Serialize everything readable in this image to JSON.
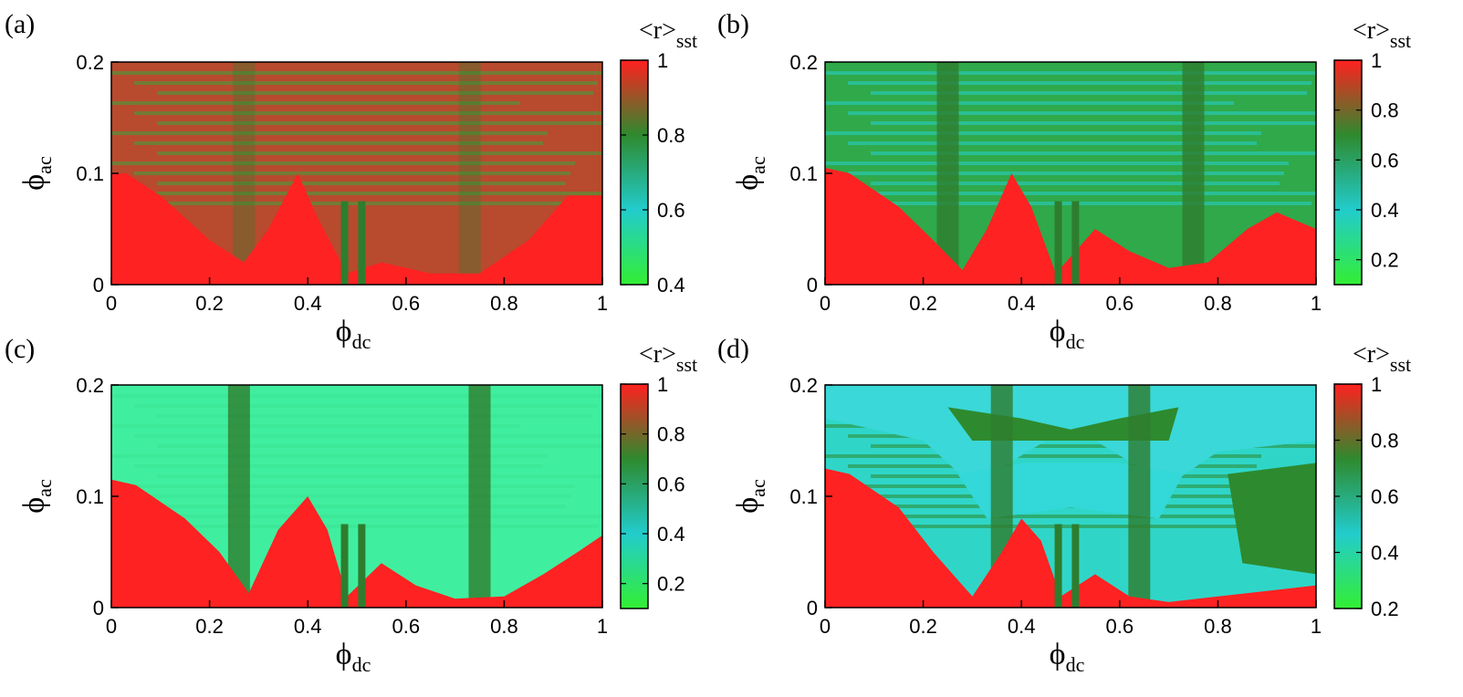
{
  "chart_data": [
    {
      "type": "heatmap",
      "panel_label": "(a)",
      "xlabel": "ϕ",
      "xlabel_sub": "dc",
      "ylabel": "ϕ",
      "ylabel_sub": "ac",
      "xlim": [
        0,
        1
      ],
      "ylim": [
        0,
        0.2
      ],
      "x_ticks": [
        "0",
        "0.2",
        "0.4",
        "0.6",
        "0.8",
        "1"
      ],
      "y_ticks": [
        "0",
        "0.1",
        "0.2"
      ],
      "colorbar": {
        "title": "<r>",
        "title_sub": "sst",
        "range": [
          0.4,
          1
        ],
        "ticks": [
          "0.4",
          "0.6",
          "0.8",
          "1"
        ]
      },
      "colormap": [
        "#33ee33",
        "#22cccc",
        "#2e8a2e",
        "#ff2020"
      ]
    },
    {
      "type": "heatmap",
      "panel_label": "(b)",
      "xlabel": "ϕ",
      "xlabel_sub": "dc",
      "ylabel": "ϕ",
      "ylabel_sub": "ac",
      "xlim": [
        0,
        1
      ],
      "ylim": [
        0,
        0.2
      ],
      "x_ticks": [
        "0",
        "0.2",
        "0.4",
        "0.6",
        "0.8",
        "1"
      ],
      "y_ticks": [
        "0",
        "0.1",
        "0.2"
      ],
      "colorbar": {
        "title": "<r>",
        "title_sub": "sst",
        "range": [
          0.1,
          1
        ],
        "ticks": [
          "0.2",
          "0.4",
          "0.6",
          "0.8",
          "1"
        ]
      },
      "colormap": [
        "#33ee33",
        "#22cccc",
        "#2e8a2e",
        "#ff2020"
      ]
    },
    {
      "type": "heatmap",
      "panel_label": "(c)",
      "xlabel": "ϕ",
      "xlabel_sub": "dc",
      "ylabel": "ϕ",
      "ylabel_sub": "ac",
      "xlim": [
        0,
        1
      ],
      "ylim": [
        0,
        0.2
      ],
      "x_ticks": [
        "0",
        "0.2",
        "0.4",
        "0.6",
        "0.8",
        "1"
      ],
      "y_ticks": [
        "0",
        "0.1",
        "0.2"
      ],
      "colorbar": {
        "title": "<r>",
        "title_sub": "sst",
        "range": [
          0.1,
          1
        ],
        "ticks": [
          "0.2",
          "0.4",
          "0.6",
          "0.8",
          "1"
        ]
      },
      "colormap": [
        "#33ee33",
        "#22cccc",
        "#2e8a2e",
        "#ff2020"
      ]
    },
    {
      "type": "heatmap",
      "panel_label": "(d)",
      "xlabel": "ϕ",
      "xlabel_sub": "dc",
      "ylabel": "ϕ",
      "ylabel_sub": "ac",
      "xlim": [
        0,
        1
      ],
      "ylim": [
        0,
        0.2
      ],
      "x_ticks": [
        "0",
        "0.2",
        "0.4",
        "0.6",
        "0.8",
        "1"
      ],
      "y_ticks": [
        "0",
        "0.1",
        "0.2"
      ],
      "colorbar": {
        "title": "<r>",
        "title_sub": "sst",
        "range": [
          0.2,
          1
        ],
        "ticks": [
          "0.2",
          "0.4",
          "0.6",
          "0.8",
          "1"
        ]
      },
      "colormap": [
        "#33ee33",
        "#22cccc",
        "#2e8a2e",
        "#ff2020"
      ]
    }
  ]
}
